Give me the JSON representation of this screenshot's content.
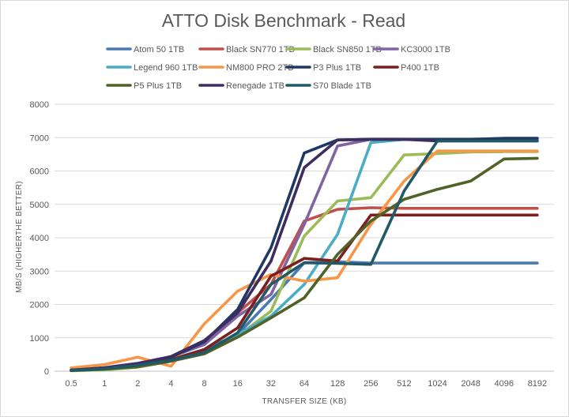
{
  "chart_data": {
    "type": "line",
    "title": "ATTO Disk Benchmark - Read",
    "xlabel": "TRANSFER SIZE (KB)",
    "ylabel": "MB/S (HIGHERTHE BETTER)",
    "ylim": [
      0,
      8000
    ],
    "yticks": [
      "0",
      "1000",
      "2000",
      "3000",
      "4000",
      "5000",
      "6000",
      "7000",
      "8000"
    ],
    "categories": [
      "0.5",
      "1",
      "2",
      "4",
      "8",
      "16",
      "32",
      "64",
      "128",
      "256",
      "512",
      "1024",
      "2048",
      "4096",
      "8192"
    ],
    "grid": "horizontal",
    "legend_position": "top",
    "series": [
      {
        "name": "Atom 50 1TB",
        "color": "#4a7ab4",
        "values": [
          20,
          60,
          180,
          340,
          620,
          1100,
          2150,
          3250,
          3280,
          3240,
          3240,
          3240,
          3240,
          3240,
          3240
        ]
      },
      {
        "name": "Black SN770 1TB",
        "color": "#c0504d",
        "values": [
          30,
          90,
          200,
          410,
          900,
          1750,
          2600,
          4500,
          4850,
          4900,
          4880,
          4880,
          4880,
          4880,
          4880
        ]
      },
      {
        "name": "Black SN850 1TB",
        "color": "#9bbb59",
        "values": [
          15,
          40,
          120,
          300,
          560,
          1050,
          1800,
          4050,
          5100,
          5200,
          6480,
          6520,
          6570,
          6580,
          6580
        ]
      },
      {
        "name": "KC3000 1TB",
        "color": "#8064a2",
        "values": [
          40,
          110,
          240,
          430,
          800,
          1650,
          2300,
          4400,
          6750,
          6950,
          6950,
          6950,
          6950,
          6950,
          6950
        ]
      },
      {
        "name": "Legend 960 1TB",
        "color": "#4bacc6",
        "values": [
          30,
          90,
          200,
          360,
          650,
          1100,
          1650,
          2600,
          4100,
          6850,
          6950,
          6950,
          6950,
          6950,
          6950
        ]
      },
      {
        "name": "NM800 PRO 2TB",
        "color": "#f79646",
        "values": [
          100,
          200,
          420,
          150,
          1420,
          2400,
          2900,
          2700,
          2800,
          4400,
          5700,
          6600,
          6600,
          6600,
          6600
        ]
      },
      {
        "name": "P3 Plus 1TB",
        "color": "#1f3864",
        "values": [
          30,
          90,
          210,
          420,
          880,
          1850,
          3700,
          6540,
          6930,
          6950,
          6950,
          6950,
          6950,
          6980,
          6980
        ]
      },
      {
        "name": "P400 1TB",
        "color": "#7b2020",
        "values": [
          25,
          70,
          160,
          340,
          650,
          1300,
          2850,
          3380,
          3300,
          4680,
          4680,
          4680,
          4680,
          4680,
          4680
        ]
      },
      {
        "name": "P5 Plus 1TB",
        "color": "#4f6228",
        "values": [
          20,
          60,
          130,
          300,
          520,
          1020,
          1600,
          2200,
          3500,
          4500,
          5150,
          5450,
          5700,
          6360,
          6380
        ]
      },
      {
        "name": "Renegade 1TB",
        "color": "#3e2d61",
        "values": [
          35,
          100,
          230,
          440,
          920,
          1750,
          3300,
          6100,
          6930,
          6950,
          6950,
          6900,
          6900,
          6900,
          6900
        ]
      },
      {
        "name": "S70 Blade 1TB",
        "color": "#215967",
        "values": [
          25,
          70,
          180,
          330,
          560,
          1150,
          2600,
          3250,
          3230,
          3200,
          5400,
          6900,
          6900,
          6900,
          6900
        ]
      }
    ]
  }
}
